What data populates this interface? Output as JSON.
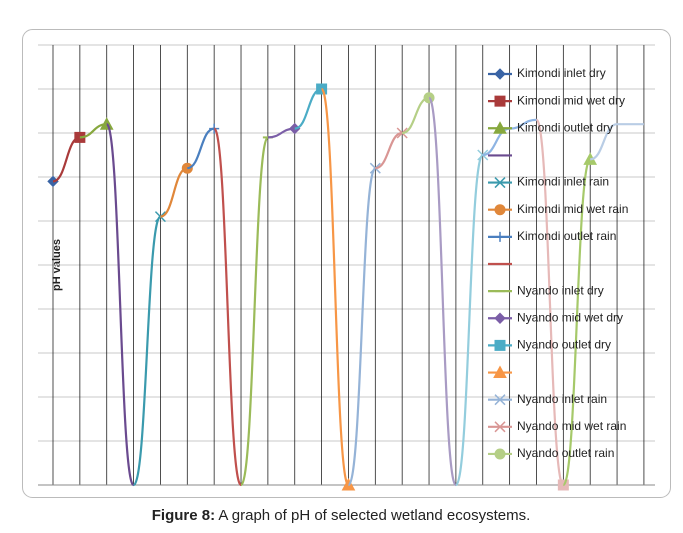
{
  "chart_data": {
    "type": "line",
    "y_label": "pH values",
    "caption_label": "Figure 8:",
    "caption_text": "A graph of pH of selected wetland ecosystems.",
    "categories": [
      null,
      null,
      null,
      null,
      null,
      null,
      null,
      null,
      null,
      null,
      null,
      null,
      null,
      null,
      null,
      null,
      null,
      null,
      null,
      null,
      null,
      null,
      null
    ],
    "ylim": [
      0,
      10
    ],
    "yticks": [
      0,
      1,
      2,
      3,
      4,
      5,
      6,
      7,
      8,
      9,
      10
    ],
    "tick_labels": false,
    "grid": true,
    "xgrid": true,
    "smooth": true,
    "series": [
      {
        "name": "Kimondi inlet dry",
        "color": "#3a64a5",
        "marker": "diamond",
        "values": [
          6.9,
          null,
          null,
          null,
          null,
          null,
          null,
          null,
          null,
          null,
          null,
          null,
          null,
          null,
          null,
          null,
          null,
          null,
          null,
          null,
          null,
          null,
          null
        ]
      },
      {
        "name": "Kimondi mid wet dry",
        "color": "#a93a3a",
        "marker": "square",
        "values": [
          6.9,
          7.9,
          null,
          null,
          null,
          null,
          null,
          null,
          null,
          null,
          null,
          null,
          null,
          null,
          null,
          null,
          null,
          null,
          null,
          null,
          null,
          null,
          null
        ]
      },
      {
        "name": "Kimondi outlet dry",
        "color": "#87a83e",
        "marker": "triangle",
        "values": [
          null,
          7.9,
          8.2,
          null,
          null,
          null,
          null,
          null,
          null,
          null,
          null,
          null,
          null,
          null,
          null,
          null,
          null,
          null,
          null,
          null,
          null,
          null,
          null
        ]
      },
      {
        "name": null,
        "color": "#6a4a8f",
        "marker": "none",
        "values": [
          null,
          null,
          8.2,
          0,
          null,
          null,
          null,
          null,
          null,
          null,
          null,
          null,
          null,
          null,
          null,
          null,
          null,
          null,
          null,
          null,
          null,
          null,
          null
        ]
      },
      {
        "name": "Kimondi inlet rain",
        "color": "#3a9aad",
        "marker": "x",
        "values": [
          null,
          null,
          null,
          0,
          6.1,
          null,
          null,
          null,
          null,
          null,
          null,
          null,
          null,
          null,
          null,
          null,
          null,
          null,
          null,
          null,
          null,
          null,
          null
        ]
      },
      {
        "name": "Kimondi mid wet rain",
        "color": "#e0873a",
        "marker": "circle",
        "values": [
          null,
          null,
          null,
          null,
          6.1,
          7.2,
          null,
          null,
          null,
          null,
          null,
          null,
          null,
          null,
          null,
          null,
          null,
          null,
          null,
          null,
          null,
          null,
          null
        ]
      },
      {
        "name": "Kimondi outlet rain",
        "color": "#4a7fbf",
        "marker": "plus",
        "values": [
          null,
          null,
          null,
          null,
          null,
          7.2,
          8.1,
          null,
          null,
          null,
          null,
          null,
          null,
          null,
          null,
          null,
          null,
          null,
          null,
          null,
          null,
          null,
          null
        ]
      },
      {
        "name": null,
        "color": "#c0504d",
        "marker": "none",
        "values": [
          null,
          null,
          null,
          null,
          null,
          null,
          8.1,
          0,
          null,
          null,
          null,
          null,
          null,
          null,
          null,
          null,
          null,
          null,
          null,
          null,
          null,
          null,
          null
        ]
      },
      {
        "name": "Nyando inlet dry",
        "color": "#9bbb59",
        "marker": "dash",
        "values": [
          null,
          null,
          null,
          null,
          null,
          null,
          null,
          0,
          7.9,
          null,
          null,
          null,
          null,
          null,
          null,
          null,
          null,
          null,
          null,
          null,
          null,
          null,
          null
        ]
      },
      {
        "name": "Nyando mid wet dry",
        "color": "#7b5ea7",
        "marker": "diamond",
        "values": [
          null,
          null,
          null,
          null,
          null,
          null,
          null,
          null,
          7.9,
          8.1,
          null,
          null,
          null,
          null,
          null,
          null,
          null,
          null,
          null,
          null,
          null,
          null,
          null
        ]
      },
      {
        "name": "Nyando outlet dry",
        "color": "#4bacc6",
        "marker": "square",
        "values": [
          null,
          null,
          null,
          null,
          null,
          null,
          null,
          null,
          null,
          8.1,
          9.0,
          null,
          null,
          null,
          null,
          null,
          null,
          null,
          null,
          null,
          null,
          null,
          null
        ]
      },
      {
        "name": null,
        "color": "#f79646",
        "marker": "triangle",
        "values": [
          null,
          null,
          null,
          null,
          null,
          null,
          null,
          null,
          null,
          null,
          9.0,
          0,
          null,
          null,
          null,
          null,
          null,
          null,
          null,
          null,
          null,
          null,
          null
        ]
      },
      {
        "name": "Nyando inlet rain",
        "color": "#95b3d7",
        "marker": "x",
        "values": [
          null,
          null,
          null,
          null,
          null,
          null,
          null,
          null,
          null,
          null,
          null,
          0,
          7.2,
          null,
          null,
          null,
          null,
          null,
          null,
          null,
          null,
          null,
          null
        ]
      },
      {
        "name": "Nyando mid wet rain",
        "color": "#d99694",
        "marker": "x",
        "values": [
          null,
          null,
          null,
          null,
          null,
          null,
          null,
          null,
          null,
          null,
          null,
          null,
          7.2,
          8.0,
          null,
          null,
          null,
          null,
          null,
          null,
          null,
          null,
          null
        ]
      },
      {
        "name": "Nyando outlet rain",
        "color": "#b5cf86",
        "marker": "circle",
        "values": [
          null,
          null,
          null,
          null,
          null,
          null,
          null,
          null,
          null,
          null,
          null,
          null,
          null,
          8.0,
          8.8,
          null,
          null,
          null,
          null,
          null,
          null,
          null,
          null
        ]
      },
      {
        "name": null,
        "legend": false,
        "color": "#a99bc4",
        "marker": "none",
        "values": [
          null,
          null,
          null,
          null,
          null,
          null,
          null,
          null,
          null,
          null,
          null,
          null,
          null,
          null,
          8.8,
          0,
          null,
          null,
          null,
          null,
          null,
          null,
          null
        ]
      },
      {
        "name": null,
        "legend": false,
        "color": "#93cddd",
        "marker": "x",
        "values": [
          null,
          null,
          null,
          null,
          null,
          null,
          null,
          null,
          null,
          null,
          null,
          null,
          null,
          null,
          null,
          0,
          7.5,
          null,
          null,
          null,
          null,
          null,
          null
        ]
      },
      {
        "name": null,
        "legend": false,
        "color": "#8eb4e3",
        "marker": "none",
        "values": [
          null,
          null,
          null,
          null,
          null,
          null,
          null,
          null,
          null,
          null,
          null,
          null,
          null,
          null,
          null,
          null,
          7.5,
          8.1,
          8.3,
          null,
          null,
          null,
          null
        ]
      },
      {
        "name": null,
        "legend": false,
        "color": "#e6b9b8",
        "marker": "square",
        "values": [
          null,
          null,
          null,
          null,
          null,
          null,
          null,
          null,
          null,
          null,
          null,
          null,
          null,
          null,
          null,
          null,
          null,
          null,
          8.3,
          0,
          null,
          null,
          null
        ]
      },
      {
        "name": null,
        "legend": false,
        "color": "#a6c96a",
        "marker": "triangle",
        "values": [
          null,
          null,
          null,
          null,
          null,
          null,
          null,
          null,
          null,
          null,
          null,
          null,
          null,
          null,
          null,
          null,
          null,
          null,
          null,
          0,
          7.4,
          null,
          null
        ]
      },
      {
        "name": null,
        "legend": false,
        "color": "#b9cde5",
        "marker": "none",
        "values": [
          null,
          null,
          null,
          null,
          null,
          null,
          null,
          null,
          null,
          null,
          null,
          null,
          null,
          null,
          null,
          null,
          null,
          null,
          null,
          null,
          7.4,
          8.2,
          8.2
        ]
      }
    ]
  }
}
